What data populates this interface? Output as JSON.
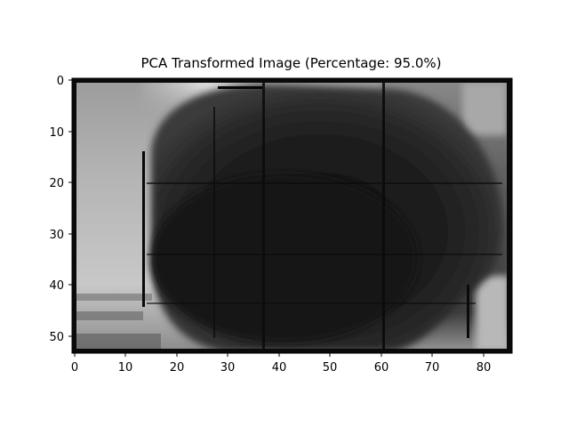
{
  "figure": {
    "title": "PCA Transformed Image (Percentage: 95.0%)"
  },
  "axes": {
    "x_ticks": [
      "0",
      "10",
      "20",
      "30",
      "40",
      "50",
      "60",
      "70",
      "80"
    ],
    "y_ticks": [
      "0",
      "10",
      "20",
      "30",
      "40",
      "50"
    ],
    "x_range": [
      0,
      85
    ],
    "y_range": [
      0,
      53
    ]
  },
  "image": {
    "description_colormap": "grayscale",
    "background_left_color": "#b8b8b8",
    "dark_object_color": "#1a1a1a",
    "frame_color": "#0a0a0a"
  }
}
